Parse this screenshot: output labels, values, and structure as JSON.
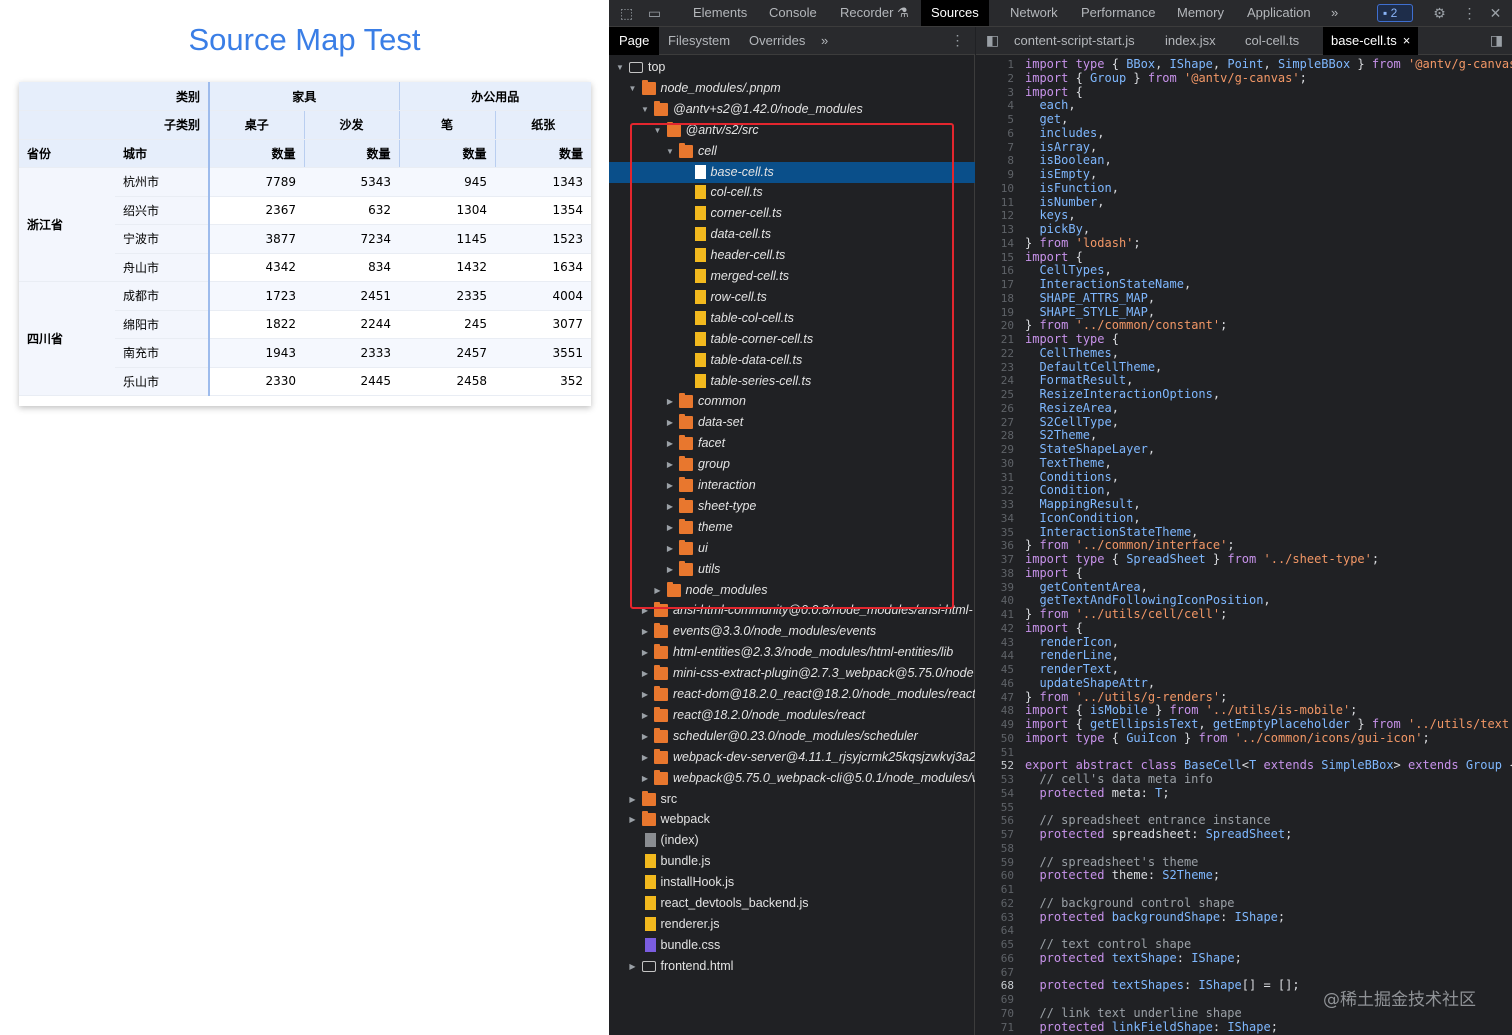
{
  "page": {
    "title": "Source Map Test",
    "table": {
      "col_header_row1": {
        "corner": "类别",
        "groups": [
          "家具",
          "办公用品"
        ]
      },
      "col_header_row2": {
        "corner": "子类别",
        "subs": [
          "桌子",
          "沙发",
          "笔",
          "纸张"
        ]
      },
      "col_header_row3": {
        "province": "省份",
        "city": "城市",
        "measure": [
          "数量",
          "数量",
          "数量",
          "数量"
        ]
      },
      "provinces": [
        "浙江省",
        "四川省"
      ],
      "rows": [
        {
          "city": "杭州市",
          "values": [
            "7789",
            "5343",
            "945",
            "1343"
          ]
        },
        {
          "city": "绍兴市",
          "values": [
            "2367",
            "632",
            "1304",
            "1354"
          ]
        },
        {
          "city": "宁波市",
          "values": [
            "3877",
            "7234",
            "1145",
            "1523"
          ]
        },
        {
          "city": "舟山市",
          "values": [
            "4342",
            "834",
            "1432",
            "1634"
          ]
        },
        {
          "city": "成都市",
          "values": [
            "1723",
            "2451",
            "2335",
            "4004"
          ]
        },
        {
          "city": "绵阳市",
          "values": [
            "1822",
            "2244",
            "245",
            "3077"
          ]
        },
        {
          "city": "南充市",
          "values": [
            "1943",
            "2333",
            "2457",
            "3551"
          ]
        },
        {
          "city": "乐山市",
          "values": [
            "2330",
            "2445",
            "2458",
            "352"
          ]
        }
      ]
    }
  },
  "devtools": {
    "tabs": [
      "Elements",
      "Console",
      "Recorder",
      "Sources",
      "Network",
      "Performance",
      "Memory",
      "Application"
    ],
    "active_tab": "Sources",
    "recorder_icon": "flask-icon",
    "more_tabs": "»",
    "message_count": "2",
    "navigator_tabs": [
      "Page",
      "Filesystem",
      "Overrides"
    ],
    "navigator_more": "»",
    "editor_tabs": [
      "content-script-start.js",
      "index.jsx",
      "col-cell.ts",
      "base-cell.ts"
    ],
    "editor_active": "base-cell.ts",
    "close_glyph": "×",
    "tree": [
      {
        "label": "top",
        "icon": "frame",
        "arrow": "open",
        "italic": false
      },
      {
        "label": "node_modules/.pnpm",
        "icon": "folder",
        "arrow": "open",
        "italic": true
      },
      {
        "label": "@antv+s2@1.42.0/node_modules",
        "icon": "folder",
        "arrow": "open",
        "italic": true
      },
      {
        "label": "@antv/s2/src",
        "icon": "folder",
        "arrow": "open",
        "italic": true
      },
      {
        "label": "cell",
        "icon": "folder",
        "arrow": "open",
        "italic": true
      },
      {
        "label": "base-cell.ts",
        "icon": "file-white",
        "arrow": "none",
        "italic": true,
        "selected": true
      },
      {
        "label": "col-cell.ts",
        "icon": "file-yellow",
        "arrow": "none",
        "italic": true
      },
      {
        "label": "corner-cell.ts",
        "icon": "file-yellow",
        "arrow": "none",
        "italic": true
      },
      {
        "label": "data-cell.ts",
        "icon": "file-yellow",
        "arrow": "none",
        "italic": true
      },
      {
        "label": "header-cell.ts",
        "icon": "file-yellow",
        "arrow": "none",
        "italic": true
      },
      {
        "label": "merged-cell.ts",
        "icon": "file-yellow",
        "arrow": "none",
        "italic": true
      },
      {
        "label": "row-cell.ts",
        "icon": "file-yellow",
        "arrow": "none",
        "italic": true
      },
      {
        "label": "table-col-cell.ts",
        "icon": "file-yellow",
        "arrow": "none",
        "italic": true
      },
      {
        "label": "table-corner-cell.ts",
        "icon": "file-yellow",
        "arrow": "none",
        "italic": true
      },
      {
        "label": "table-data-cell.ts",
        "icon": "file-yellow",
        "arrow": "none",
        "italic": true
      },
      {
        "label": "table-series-cell.ts",
        "icon": "file-yellow",
        "arrow": "none",
        "italic": true
      },
      {
        "label": "common",
        "icon": "folder",
        "arrow": "closed",
        "italic": true
      },
      {
        "label": "data-set",
        "icon": "folder",
        "arrow": "closed",
        "italic": true
      },
      {
        "label": "facet",
        "icon": "folder",
        "arrow": "closed",
        "italic": true
      },
      {
        "label": "group",
        "icon": "folder",
        "arrow": "closed",
        "italic": true
      },
      {
        "label": "interaction",
        "icon": "folder",
        "arrow": "closed",
        "italic": true
      },
      {
        "label": "sheet-type",
        "icon": "folder",
        "arrow": "closed",
        "italic": true
      },
      {
        "label": "theme",
        "icon": "folder",
        "arrow": "closed",
        "italic": true
      },
      {
        "label": "ui",
        "icon": "folder",
        "arrow": "closed",
        "italic": true
      },
      {
        "label": "utils",
        "icon": "folder",
        "arrow": "closed",
        "italic": true
      },
      {
        "label": "node_modules",
        "icon": "folder",
        "arrow": "closed",
        "italic": true
      },
      {
        "label": "ansi-html-community@0.0.8/node_modules/ansi-html-",
        "icon": "folder",
        "arrow": "closed",
        "italic": true
      },
      {
        "label": "events@3.3.0/node_modules/events",
        "icon": "folder",
        "arrow": "closed",
        "italic": true
      },
      {
        "label": "html-entities@2.3.3/node_modules/html-entities/lib",
        "icon": "folder",
        "arrow": "closed",
        "italic": true
      },
      {
        "label": "mini-css-extract-plugin@2.7.3_webpack@5.75.0/node",
        "icon": "folder",
        "arrow": "closed",
        "italic": true
      },
      {
        "label": "react-dom@18.2.0_react@18.2.0/node_modules/react",
        "icon": "folder",
        "arrow": "closed",
        "italic": true
      },
      {
        "label": "react@18.2.0/node_modules/react",
        "icon": "folder",
        "arrow": "closed",
        "italic": true
      },
      {
        "label": "scheduler@0.23.0/node_modules/scheduler",
        "icon": "folder",
        "arrow": "closed",
        "italic": true
      },
      {
        "label": "webpack-dev-server@4.11.1_rjsyjcrmk25kqsjzwkvj3a2",
        "icon": "folder",
        "arrow": "closed",
        "italic": true
      },
      {
        "label": "webpack@5.75.0_webpack-cli@5.0.1/node_modules/v",
        "icon": "folder",
        "arrow": "closed",
        "italic": true
      },
      {
        "label": "src",
        "icon": "folder",
        "arrow": "closed",
        "italic": false
      },
      {
        "label": "webpack",
        "icon": "folder",
        "arrow": "closed",
        "italic": false
      },
      {
        "label": "(index)",
        "icon": "file-grey",
        "arrow": "none",
        "italic": false
      },
      {
        "label": "bundle.js",
        "icon": "file-yellow",
        "arrow": "none",
        "italic": false
      },
      {
        "label": "installHook.js",
        "icon": "file-yellow",
        "arrow": "none",
        "italic": false
      },
      {
        "label": "react_devtools_backend.js",
        "icon": "file-yellow",
        "arrow": "none",
        "italic": false
      },
      {
        "label": "renderer.js",
        "icon": "file-yellow",
        "arrow": "none",
        "italic": false
      },
      {
        "label": "bundle.css",
        "icon": "file-purple",
        "arrow": "none",
        "italic": false
      },
      {
        "label": "frontend.html",
        "icon": "frame",
        "arrow": "closed",
        "italic": false
      }
    ],
    "code_lines": [
      "import type { BBox, IShape, Point, SimpleBBox } from '@antv/g-canvas';",
      "import { Group } from '@antv/g-canvas';",
      "import {",
      "  each,",
      "  get,",
      "  includes,",
      "  isArray,",
      "  isBoolean,",
      "  isEmpty,",
      "  isFunction,",
      "  isNumber,",
      "  keys,",
      "  pickBy,",
      "} from 'lodash';",
      "import {",
      "  CellTypes,",
      "  InteractionStateName,",
      "  SHAPE_ATTRS_MAP,",
      "  SHAPE_STYLE_MAP,",
      "} from '../common/constant';",
      "import type {",
      "  CellThemes,",
      "  DefaultCellTheme,",
      "  FormatResult,",
      "  ResizeInteractionOptions,",
      "  ResizeArea,",
      "  S2CellType,",
      "  S2Theme,",
      "  StateShapeLayer,",
      "  TextTheme,",
      "  Conditions,",
      "  Condition,",
      "  MappingResult,",
      "  IconCondition,",
      "  InteractionStateTheme,",
      "} from '../common/interface';",
      "import type { SpreadSheet } from '../sheet-type';",
      "import {",
      "  getContentArea,",
      "  getTextAndFollowingIconPosition,",
      "} from '../utils/cell/cell';",
      "import {",
      "  renderIcon,",
      "  renderLine,",
      "  renderText,",
      "  updateShapeAttr,",
      "} from '../utils/g-renders';",
      "import { isMobile } from '../utils/is-mobile';",
      "import { getEllipsisText, getEmptyPlaceholder } from '../utils/text';",
      "import type { GuiIcon } from '../common/icons/gui-icon';",
      "",
      "export abstract class BaseCell<T extends SimpleBBox> extends Group {",
      "  // cell's data meta info",
      "  protected meta: T;",
      "",
      "  // spreadsheet entrance instance",
      "  protected spreadsheet: SpreadSheet;",
      "",
      "  // spreadsheet's theme",
      "  protected theme: S2Theme;",
      "",
      "  // background control shape",
      "  protected backgroundShape: IShape;",
      "",
      "  // text control shape",
      "  protected textShape: IShape;",
      "",
      "  protected textShapes: IShape[] = [];",
      "",
      "  // link text underline shape",
      "  protected linkFieldShape: IShape;"
    ],
    "bold_line_numbers": [
      52,
      68
    ],
    "watermark": "@稀土掘金技术社区"
  }
}
